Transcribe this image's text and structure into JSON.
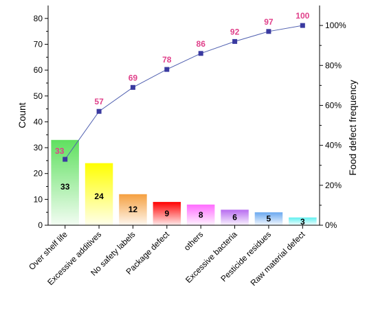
{
  "chart_data": {
    "type": "bar",
    "subtype": "pareto",
    "title": "",
    "xlabel": "",
    "ylabel": "Count",
    "y2label": "Food defect frequency",
    "ylim": [
      0,
      85
    ],
    "y2lim": [
      0,
      110
    ],
    "y_ticks": [
      0,
      10,
      20,
      30,
      40,
      50,
      60,
      70,
      80
    ],
    "y2_ticks": [
      "0%",
      "20%",
      "40%",
      "60%",
      "80%",
      "100%"
    ],
    "y2_tick_values": [
      0,
      20,
      40,
      60,
      80,
      100
    ],
    "categories": [
      "Over shelf life",
      "Excessive additives",
      "No safety labels",
      "Package defect",
      "others",
      "Excessive bacteria",
      "Pesticide residues",
      "Raw material defect"
    ],
    "values": [
      33,
      24,
      12,
      9,
      8,
      6,
      5,
      3
    ],
    "cumulative_percent": [
      33,
      57,
      69,
      78,
      86,
      92,
      97,
      100
    ],
    "bar_colors": [
      "#5fe05f",
      "#ffff00",
      "#f5a040",
      "#ff0000",
      "#ff6cff",
      "#b86cf0",
      "#6aa8f0",
      "#60f0f0"
    ],
    "line_color": "#5060b0",
    "marker_color": "#3a3aa0",
    "cumulative_label_color": "#e0408a",
    "grid": false,
    "legend": "none"
  }
}
